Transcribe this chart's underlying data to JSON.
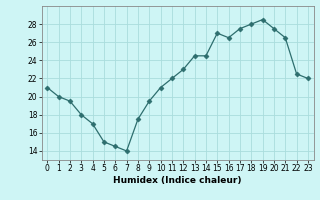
{
  "x": [
    0,
    1,
    2,
    3,
    4,
    5,
    6,
    7,
    8,
    9,
    10,
    11,
    12,
    13,
    14,
    15,
    16,
    17,
    18,
    19,
    20,
    21,
    22,
    23
  ],
  "y": [
    21,
    20,
    19.5,
    18,
    17,
    15,
    14.5,
    14,
    17.5,
    19.5,
    21,
    22,
    23,
    24.5,
    24.5,
    27,
    26.5,
    27.5,
    28,
    28.5,
    27.5,
    26.5,
    22.5,
    22
  ],
  "line_color": "#2d6e6e",
  "marker": "D",
  "marker_size": 2.5,
  "bg_color": "#cef5f5",
  "grid_color": "#aadddd",
  "xlabel": "Humidex (Indice chaleur)",
  "ylim": [
    13,
    30
  ],
  "xlim": [
    -0.5,
    23.5
  ],
  "yticks": [
    14,
    16,
    18,
    20,
    22,
    24,
    26,
    28
  ],
  "xticks": [
    0,
    1,
    2,
    3,
    4,
    5,
    6,
    7,
    8,
    9,
    10,
    11,
    12,
    13,
    14,
    15,
    16,
    17,
    18,
    19,
    20,
    21,
    22,
    23
  ],
  "xlabel_fontsize": 6.5,
  "tick_fontsize": 5.5
}
